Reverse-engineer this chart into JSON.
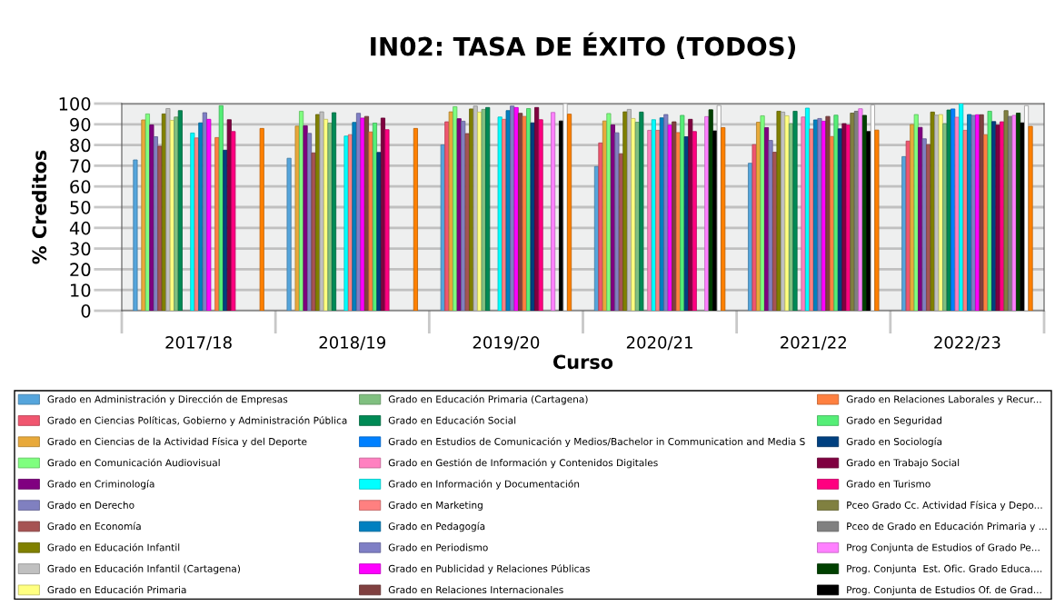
{
  "chart_data": {
    "type": "bar",
    "title": "IN02: TASA DE ÉXITO (TODOS)",
    "xlabel": "Curso",
    "ylabel": "% Creditos",
    "categories": [
      "2017/18",
      "2018/19",
      "2019/20",
      "2020/21",
      "2021/22",
      "2022/23"
    ],
    "ylim": [
      0,
      100
    ],
    "yticks": [
      0,
      10,
      20,
      30,
      40,
      50,
      60,
      70,
      80,
      90,
      100
    ],
    "grid": "y",
    "legend": "bottom",
    "series": [
      {
        "name": "Grado en Administración y Dirección de Empresas",
        "color": "#55a5dc",
        "values": [
          72.8,
          73.6,
          80,
          69.6,
          71.2,
          74.4
        ]
      },
      {
        "name": "Grado en Ciencias Políticas, Gobierno y Administración Pública",
        "color": "#f0566f",
        "values": [
          null,
          null,
          91.2,
          81,
          80.2,
          81.9
        ]
      },
      {
        "name": "Grado en Ciencias de la Actividad Física y del Deporte",
        "color": "#e8a93a",
        "values": [
          92.1,
          89.1,
          96,
          91.6,
          91,
          89.9
        ]
      },
      {
        "name": "Grado en Comunicación Audiovisual",
        "color": "#7fff7f",
        "values": [
          95,
          96.3,
          98.5,
          95.2,
          94.1,
          94.7
        ]
      },
      {
        "name": "Grado en Criminología",
        "color": "#800080",
        "values": [
          89.7,
          89.3,
          92.7,
          89.7,
          88.4,
          88.5
        ]
      },
      {
        "name": "Grado en Derecho",
        "color": "#8080c0",
        "values": [
          84,
          85.6,
          91.5,
          85.9,
          82.2,
          83
        ]
      },
      {
        "name": "Grado en Economía",
        "color": "#a65353",
        "values": [
          79.4,
          76.2,
          85.5,
          75.8,
          76.5,
          80.2
        ]
      },
      {
        "name": "Grado en Educación Infantil",
        "color": "#808000",
        "values": [
          95,
          94.7,
          97.4,
          96,
          96.3,
          95.9
        ]
      },
      {
        "name": "Grado en Educación Infantil (Cartagena)",
        "color": "#c0c0c0",
        "values": [
          97.6,
          96,
          98.8,
          97.2,
          95.9,
          94.4
        ]
      },
      {
        "name": "Grado en Educación Primaria",
        "color": "#ffff80",
        "values": [
          91.9,
          92.4,
          95.9,
          92.8,
          94.1,
          94.7
        ]
      },
      {
        "name": "Grado en Educación Primaria (Cartagena)",
        "color": "#80c080",
        "values": [
          93.5,
          90.6,
          97.2,
          91,
          90.3,
          90.3
        ]
      },
      {
        "name": "Grado en Educación Social",
        "color": "#008a55",
        "values": [
          96.6,
          95.6,
          98.1,
          95.9,
          96.3,
          96.9
        ]
      },
      {
        "name": "Grado en Estudios de Comunicación y Medios/Bachelor in Communication and Media S",
        "color": "#0080ff",
        "values": [
          null,
          null,
          null,
          null,
          null,
          97.4
        ]
      },
      {
        "name": "Grado en Gestión de Información y Contenidos Digitales",
        "color": "#ff80c0",
        "values": [
          null,
          null,
          null,
          87.1,
          93.5,
          93.4
        ]
      },
      {
        "name": "Grado en Información y Documentación",
        "color": "#00ffff",
        "values": [
          85.8,
          84.3,
          93.5,
          92.2,
          97.8,
          100
        ]
      },
      {
        "name": "Grado en Marketing",
        "color": "#ff8080",
        "values": [
          83.4,
          85,
          92.4,
          87.1,
          87.7,
          87.1
        ]
      },
      {
        "name": "Grado en Pedagogía",
        "color": "#0080c0",
        "values": [
          90.7,
          90.9,
          96.6,
          93.1,
          92.1,
          94.7
        ]
      },
      {
        "name": "Grado en Periodismo",
        "color": "#7f7fc5",
        "values": [
          95.6,
          95.3,
          98.8,
          94.7,
          92.8,
          94.3
        ]
      },
      {
        "name": "Grado en Publicidad y Relaciones Públicas",
        "color": "#ff00ff",
        "values": [
          92.4,
          93,
          98.1,
          89.6,
          91.5,
          94.6
        ]
      },
      {
        "name": "Grado en Relaciones Internacionales",
        "color": "#804040",
        "values": [
          null,
          93.8,
          95.3,
          91.2,
          93.8,
          94.6
        ]
      },
      {
        "name": "Grado en Relaciones Laborales y Recur...",
        "color": "#ff8040",
        "values": [
          83.6,
          86.3,
          93.8,
          86,
          84.1,
          85
        ]
      },
      {
        "name": "Grado en Seguridad",
        "color": "#55ee77",
        "values": [
          99,
          90.6,
          97.6,
          94.3,
          94.4,
          96.3
        ]
      },
      {
        "name": "Grado en Sociología",
        "color": "#004080",
        "values": [
          77.5,
          76.4,
          90.7,
          84,
          87.8,
          91.3
        ]
      },
      {
        "name": "Grado en Trabajo Social",
        "color": "#800040",
        "values": [
          92.2,
          93,
          98.1,
          92.4,
          90.3,
          89.6
        ]
      },
      {
        "name": "Grado en Turismo",
        "color": "#ff0080",
        "values": [
          86.5,
          87.4,
          92.2,
          86.5,
          89.6,
          91.2
        ]
      },
      {
        "name": "Pceo Grado Cc. Actividad Física y Depo...",
        "color": "#808040",
        "values": [
          null,
          null,
          null,
          null,
          95.4,
          96.6
        ]
      },
      {
        "name": "Pceo de Grado en Educación Primaria y ...",
        "color": "#808080",
        "values": [
          null,
          null,
          null,
          null,
          96.3,
          93.8
        ]
      },
      {
        "name": "Prog Conjunta de Estudios of Grado Pe...",
        "color": "#ff80ff",
        "values": [
          null,
          null,
          95.7,
          93.7,
          97.5,
          94.3
        ]
      },
      {
        "name": "Prog. Conjunta  Est. Ofic. Grado Educa....",
        "color": "#004000",
        "values": [
          null,
          null,
          null,
          97,
          94.3,
          95.4
        ]
      },
      {
        "name": "Prog. Conjunta de Estudios Of. de Grad...",
        "color": "#000000",
        "values": [
          null,
          null,
          91.6,
          86.8,
          86.5,
          90.7
        ]
      },
      {
        "color": "#ffffff",
        "values": [
          null,
          null,
          100,
          99.1,
          99.3,
          99
        ]
      },
      {
        "color": "#ff8000",
        "values": [
          88,
          88,
          94.9,
          88.4,
          87.2,
          89
        ]
      }
    ]
  }
}
